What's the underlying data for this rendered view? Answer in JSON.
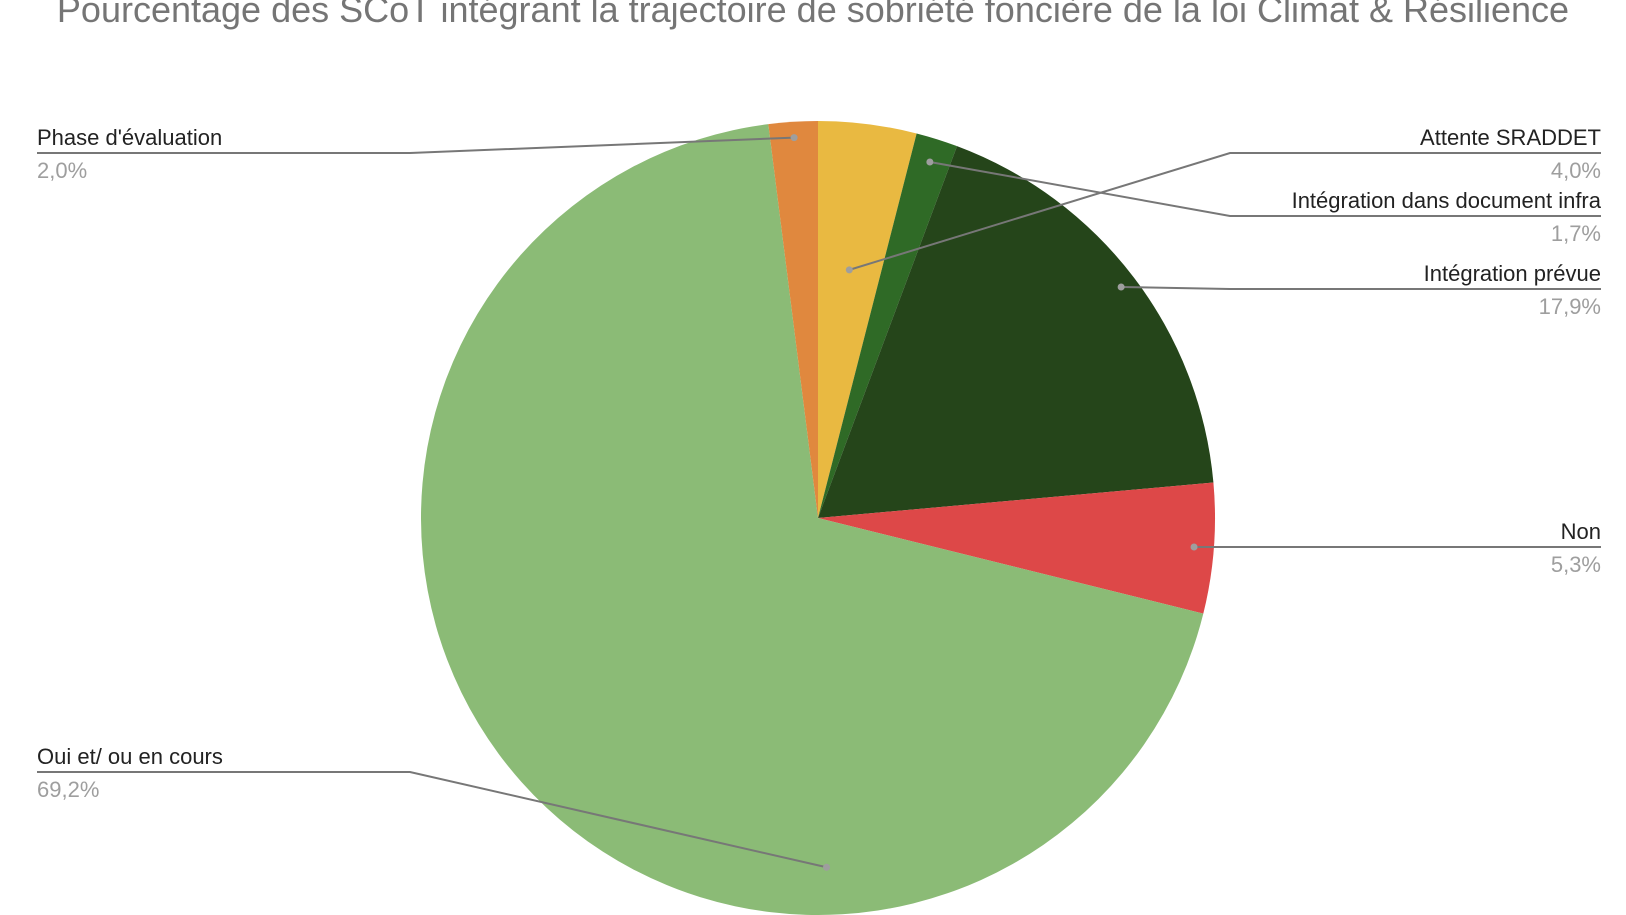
{
  "chart_data": {
    "type": "pie",
    "title": "Pourcentage des SCoT intégrant la trajectoire de sobriété foncière de la loi Climat & Résilience",
    "start": "12 o'clock",
    "direction": "clockwise",
    "slices": [
      {
        "label": "Attente SRADDET",
        "value": 4.0,
        "value_label": "4,0%",
        "color": "#e9b941"
      },
      {
        "label": "Intégration dans document infra",
        "value": 1.7,
        "value_label": "1,7%",
        "color": "#2f6a26"
      },
      {
        "label": "Intégration prévue",
        "value": 17.9,
        "value_label": "17,9%",
        "color": "#25451a"
      },
      {
        "label": "Non",
        "value": 5.3,
        "value_label": "5,3%",
        "color": "#dd4848"
      },
      {
        "label": "Oui et/ ou en cours",
        "value": 69.2,
        "value_label": "69,2%",
        "color": "#8bbb76"
      },
      {
        "label": "Phase d'évaluation",
        "value": 2.0,
        "value_label": "2,0%",
        "color": "#e0883e"
      }
    ]
  }
}
